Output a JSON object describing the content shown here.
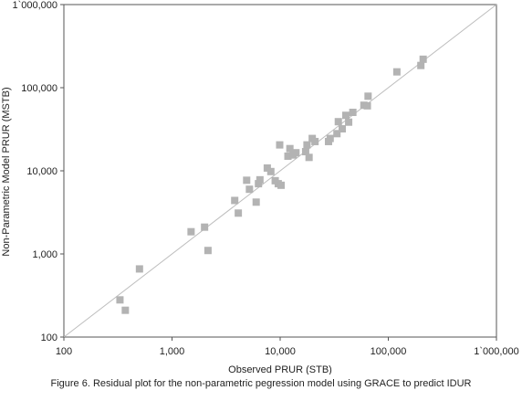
{
  "chart_data": {
    "type": "scatter",
    "xlabel": "Observed PRUR (STB)",
    "ylabel": "Non-Parametric Model PRUR (MSTB)",
    "x_scale": "log",
    "y_scale": "log",
    "xlim": [
      100,
      1000000
    ],
    "ylim": [
      100,
      1000000
    ],
    "x_ticks": [
      100,
      1000,
      10000,
      100000,
      1000000
    ],
    "x_tick_labels": [
      "100",
      "1,000",
      "10,000",
      "100,000",
      "1`000,000"
    ],
    "y_ticks": [
      100,
      1000,
      10000,
      100000,
      1000000
    ],
    "y_tick_labels": [
      "100",
      "1,000",
      "10,000",
      "100,000",
      "1`000,000"
    ],
    "grid": false,
    "marker": "square",
    "marker_color": "#b3b3b3",
    "reference_line": {
      "from": [
        100,
        100
      ],
      "to": [
        1000000,
        1000000
      ],
      "color": "#bdbdbd"
    },
    "points": [
      [
        330,
        280
      ],
      [
        370,
        210
      ],
      [
        500,
        660
      ],
      [
        1500,
        1850
      ],
      [
        2000,
        2100
      ],
      [
        2150,
        1100
      ],
      [
        3800,
        4400
      ],
      [
        4100,
        3100
      ],
      [
        4900,
        7700
      ],
      [
        5200,
        6000
      ],
      [
        6000,
        4200
      ],
      [
        6300,
        7000
      ],
      [
        6500,
        7800
      ],
      [
        7600,
        10800
      ],
      [
        8200,
        9800
      ],
      [
        9000,
        7600
      ],
      [
        9600,
        7000
      ],
      [
        10200,
        6700
      ],
      [
        9900,
        20500
      ],
      [
        11800,
        15000
      ],
      [
        12300,
        18500
      ],
      [
        13200,
        15500
      ],
      [
        14000,
        16500
      ],
      [
        17200,
        17000
      ],
      [
        17700,
        20500
      ],
      [
        18500,
        14500
      ],
      [
        19800,
        24500
      ],
      [
        21000,
        22500
      ],
      [
        28000,
        22500
      ],
      [
        29000,
        24500
      ],
      [
        33500,
        28000
      ],
      [
        34500,
        39000
      ],
      [
        37500,
        32000
      ],
      [
        40500,
        46500
      ],
      [
        43000,
        38500
      ],
      [
        47000,
        50500
      ],
      [
        59500,
        61500
      ],
      [
        64000,
        60500
      ],
      [
        65000,
        79000
      ],
      [
        120000,
        155000
      ],
      [
        200000,
        185000
      ],
      [
        210000,
        220000
      ]
    ]
  },
  "caption": "Figure 6. Residual plot for the non-parametric pegression model using GRACE to predict IDUR"
}
